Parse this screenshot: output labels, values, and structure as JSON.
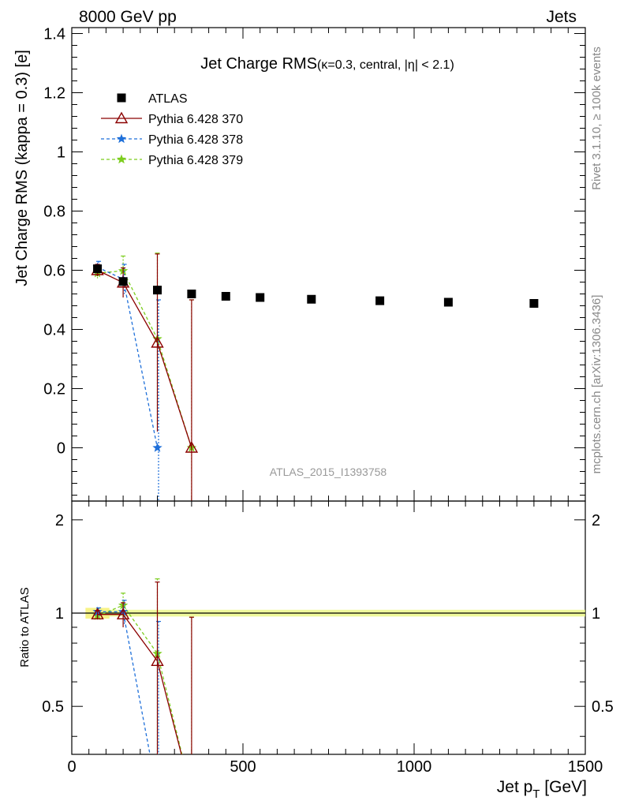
{
  "header": {
    "left": "8000 GeV pp",
    "right": "Jets"
  },
  "side_labels": {
    "rivet": "Rivet 3.1.10, ≥ 100k events",
    "mcplots": "mcplots.cern.ch [arXiv:1306.3436]"
  },
  "chart_data": [
    {
      "type": "scatter",
      "title_main": "Jet Charge RMS",
      "title_sub": "(κ=0.3, central, |η| < 2.1)",
      "watermark": "ATLAS_2015_I1393758",
      "ylabel": "Jet Charge RMS (kappa = 0.3) [e]",
      "xlim": [
        0,
        1500
      ],
      "ylim": [
        -0.18,
        1.42
      ],
      "yticks": [
        0,
        0.2,
        0.4,
        0.6,
        0.8,
        1,
        1.2,
        1.4
      ],
      "yticklabels": [
        "0",
        "0.2",
        "0.4",
        "0.6",
        "0.8",
        "1",
        "1.2",
        "1.4"
      ],
      "legend_position": "top-left",
      "series": [
        {
          "name": "ATLAS",
          "color": "#000000",
          "marker": "square",
          "x": [
            75,
            150,
            250,
            350,
            450,
            550,
            700,
            900,
            1100,
            1350
          ],
          "y": [
            0.605,
            0.562,
            0.533,
            0.52,
            0.512,
            0.508,
            0.502,
            0.497,
            0.492,
            0.488
          ],
          "err": [
            0.01,
            0.008,
            0.006,
            0.005,
            0.004,
            0.004,
            0.004,
            0.004,
            0.004,
            0.004
          ]
        },
        {
          "name": "Pythia 6.428 370",
          "color": "#8b0000",
          "marker": "triangle-open",
          "dash": "solid",
          "x": [
            75,
            150,
            250,
            350
          ],
          "y": [
            0.6,
            0.558,
            0.355,
            0.0
          ],
          "err": [
            0.02,
            0.05,
            0.3,
            0.5
          ]
        },
        {
          "name": "Pythia 6.428 378",
          "color": "#1e6fd9",
          "marker": "star",
          "dash": "dashed",
          "x": [
            75,
            150,
            250
          ],
          "y": [
            0.61,
            0.57,
            0.0
          ],
          "err": [
            0.02,
            0.05,
            0.5
          ]
        },
        {
          "name": "Pythia 6.428 379",
          "color": "#7ccd1f",
          "marker": "star",
          "dash": "dashed",
          "x": [
            75,
            150,
            250,
            350
          ],
          "y": [
            0.59,
            0.598,
            0.368,
            0.0
          ],
          "err": [
            0.02,
            0.05,
            0.29,
            0.5
          ]
        }
      ]
    },
    {
      "type": "line",
      "ylabel": "Ratio to ATLAS",
      "xlabel": "Jet p_T [GeV]",
      "xlim": [
        0,
        1500
      ],
      "xticks": [
        0,
        500,
        1000,
        1500
      ],
      "xticklabels": [
        "0",
        "500",
        "1000",
        "1500"
      ],
      "ylim": [
        0.35,
        2.3
      ],
      "ylog": true,
      "yticks": [
        0.5,
        1,
        2
      ],
      "yticklabels": [
        "0.5",
        "1",
        "2"
      ],
      "reference": 1,
      "series": [
        {
          "name": "Pythia 6.428 370",
          "color": "#8b0000",
          "marker": "triangle-open",
          "dash": "solid",
          "x": [
            75,
            150,
            250,
            350
          ],
          "y": [
            0.99,
            0.99,
            0.7,
            0.0
          ],
          "err": [
            0.03,
            0.09,
            0.56,
            0.97
          ]
        },
        {
          "name": "Pythia 6.428 378",
          "color": "#1e6fd9",
          "marker": "star",
          "dash": "dashed",
          "x": [
            75,
            150,
            250
          ],
          "y": [
            1.01,
            1.01,
            0.0
          ],
          "err": [
            0.03,
            0.09,
            0.94
          ]
        },
        {
          "name": "Pythia 6.428 379",
          "color": "#7ccd1f",
          "marker": "star",
          "dash": "dashed",
          "x": [
            75,
            150,
            250,
            350
          ],
          "y": [
            0.98,
            1.06,
            0.74,
            0.0
          ],
          "err": [
            0.03,
            0.1,
            0.55,
            0.97
          ]
        }
      ]
    }
  ]
}
